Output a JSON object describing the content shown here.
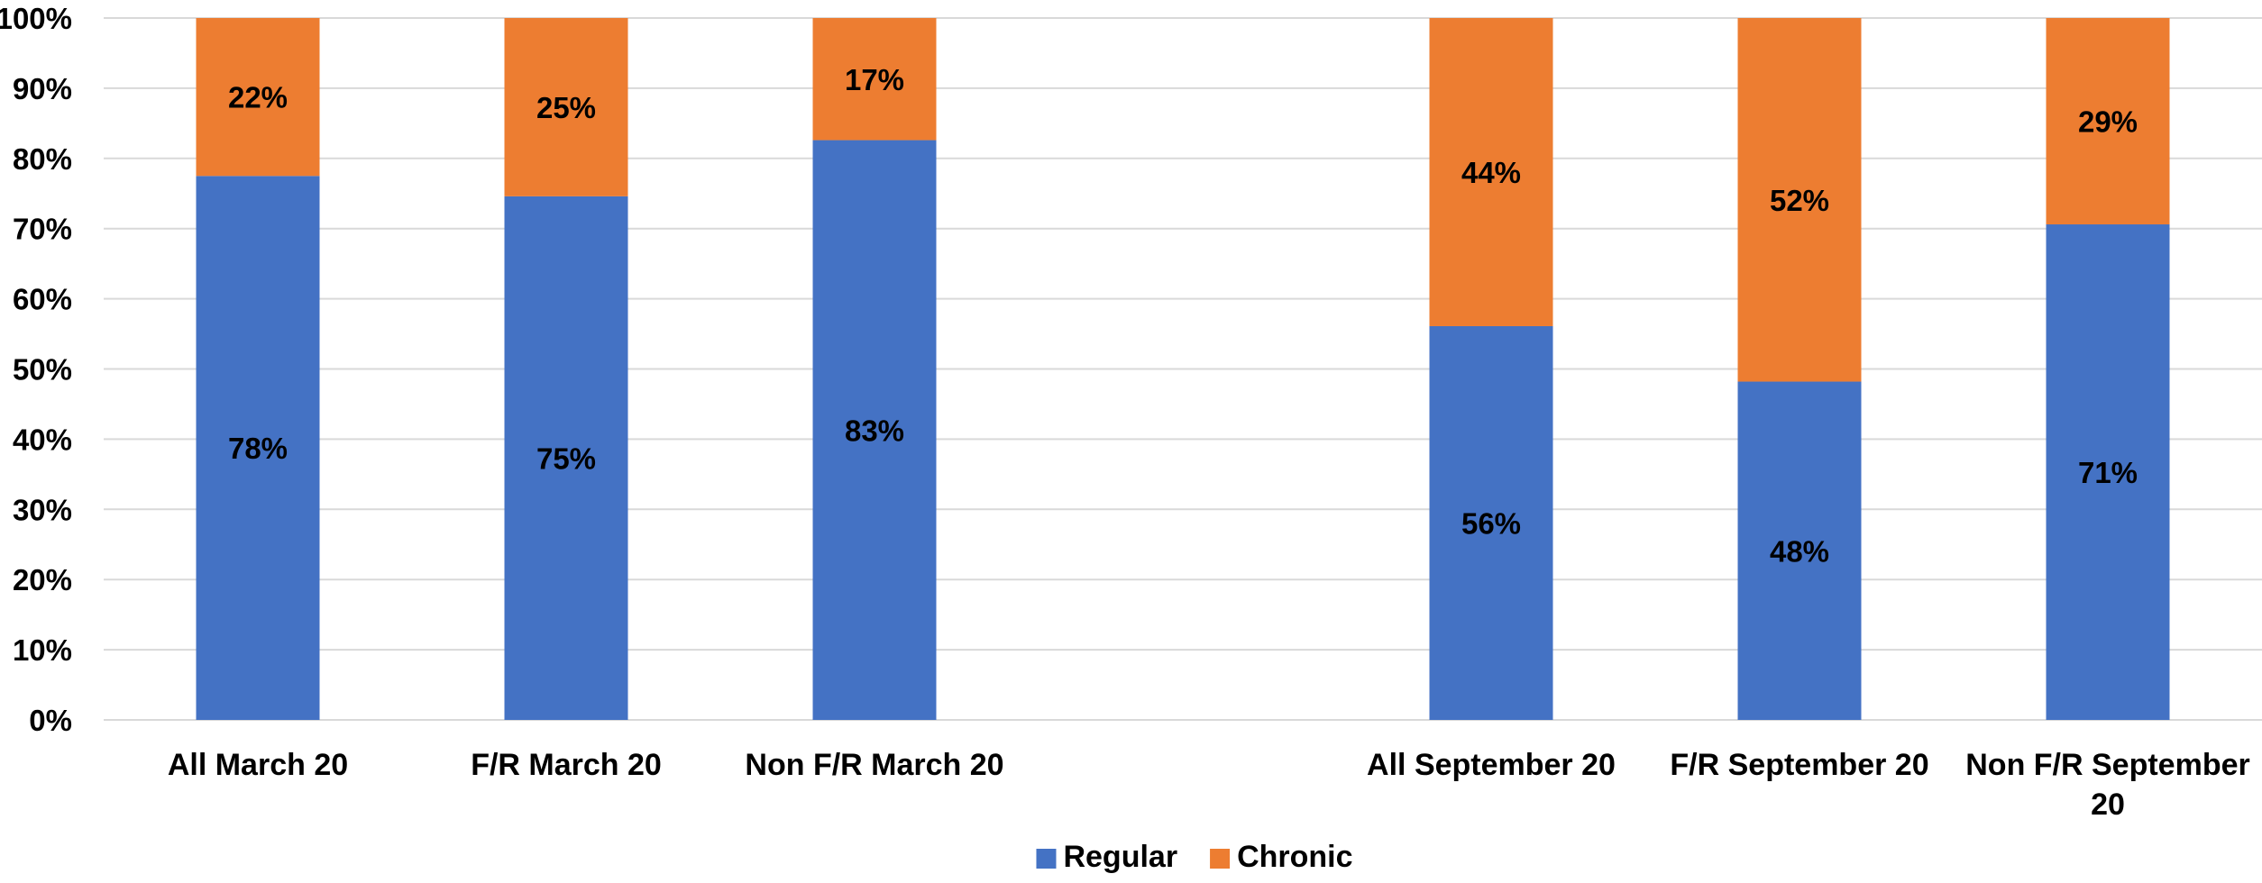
{
  "chart_data": {
    "type": "bar",
    "stacked": true,
    "categories": [
      [
        "All March 20"
      ],
      [
        "F/R March 20"
      ],
      [
        "Non F/R March 20"
      ],
      [
        ""
      ],
      [
        "All September 20"
      ],
      [
        "F/R September 20"
      ],
      [
        "Non F/R September",
        "20"
      ]
    ],
    "series": [
      {
        "name": "Regular",
        "color": "#4472c4",
        "values": [
          77.5,
          74.6,
          82.6,
          null,
          56.1,
          48.2,
          70.6
        ],
        "labels": [
          "78%",
          "75%",
          "83%",
          "",
          "56%",
          "48%",
          "71%"
        ]
      },
      {
        "name": "Chronic",
        "color": "#ed7d31",
        "values": [
          22.5,
          25.4,
          17.4,
          null,
          43.9,
          51.8,
          29.4
        ],
        "labels": [
          "22%",
          "25%",
          "17%",
          "",
          "44%",
          "52%",
          "29%"
        ]
      }
    ],
    "ylim": [
      0,
      100
    ],
    "yticks": [
      "0%",
      "10%",
      "20%",
      "30%",
      "40%",
      "50%",
      "60%",
      "70%",
      "80%",
      "90%",
      "100%"
    ],
    "grid": true,
    "legend_position": "bottom-center",
    "title": "",
    "xlabel": "",
    "ylabel": ""
  }
}
